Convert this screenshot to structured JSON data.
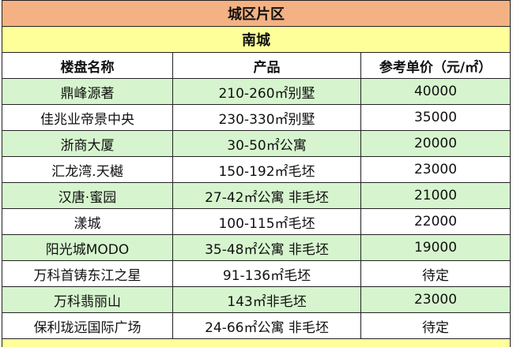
{
  "title": "城区片区",
  "region": "南城",
  "columns": [
    "楼盘名称",
    "产品",
    "参考单价（元/㎡）"
  ],
  "rows": [
    {
      "name": "鼎峰源著",
      "product": "210-260㎡别墅",
      "price": "40000"
    },
    {
      "name": "佳兆业帝景中央",
      "product": "230-330㎡别墅",
      "price": "35000"
    },
    {
      "name": "浙商大厦",
      "product": "30-50㎡公寓",
      "price": "20000"
    },
    {
      "name": "汇龙湾.天樾",
      "product": "150-192㎡毛坯",
      "price": "23000"
    },
    {
      "name": "汉唐·蜜园",
      "product": "27-42㎡公寓 非毛坯",
      "price": "21000"
    },
    {
      "name": "漾城",
      "product": "100-115㎡毛坯",
      "price": "22000"
    },
    {
      "name": "阳光城MODO",
      "product": "35-48㎡公寓 非毛坯",
      "price": "19000"
    },
    {
      "name": "万科首铸东江之星",
      "product": "91-136㎡毛坯",
      "price": "待定"
    },
    {
      "name": "万科翡丽山",
      "product": "143㎡非毛坯",
      "price": "23000"
    },
    {
      "name": "保利珑远国际广场",
      "product": "24-66㎡公寓 非毛坯",
      "price": "待定"
    }
  ],
  "colors": {
    "title_bg": "#F4B183",
    "region_bg": "#FFFF99",
    "row_alt_bg": "#D6F5CE"
  }
}
